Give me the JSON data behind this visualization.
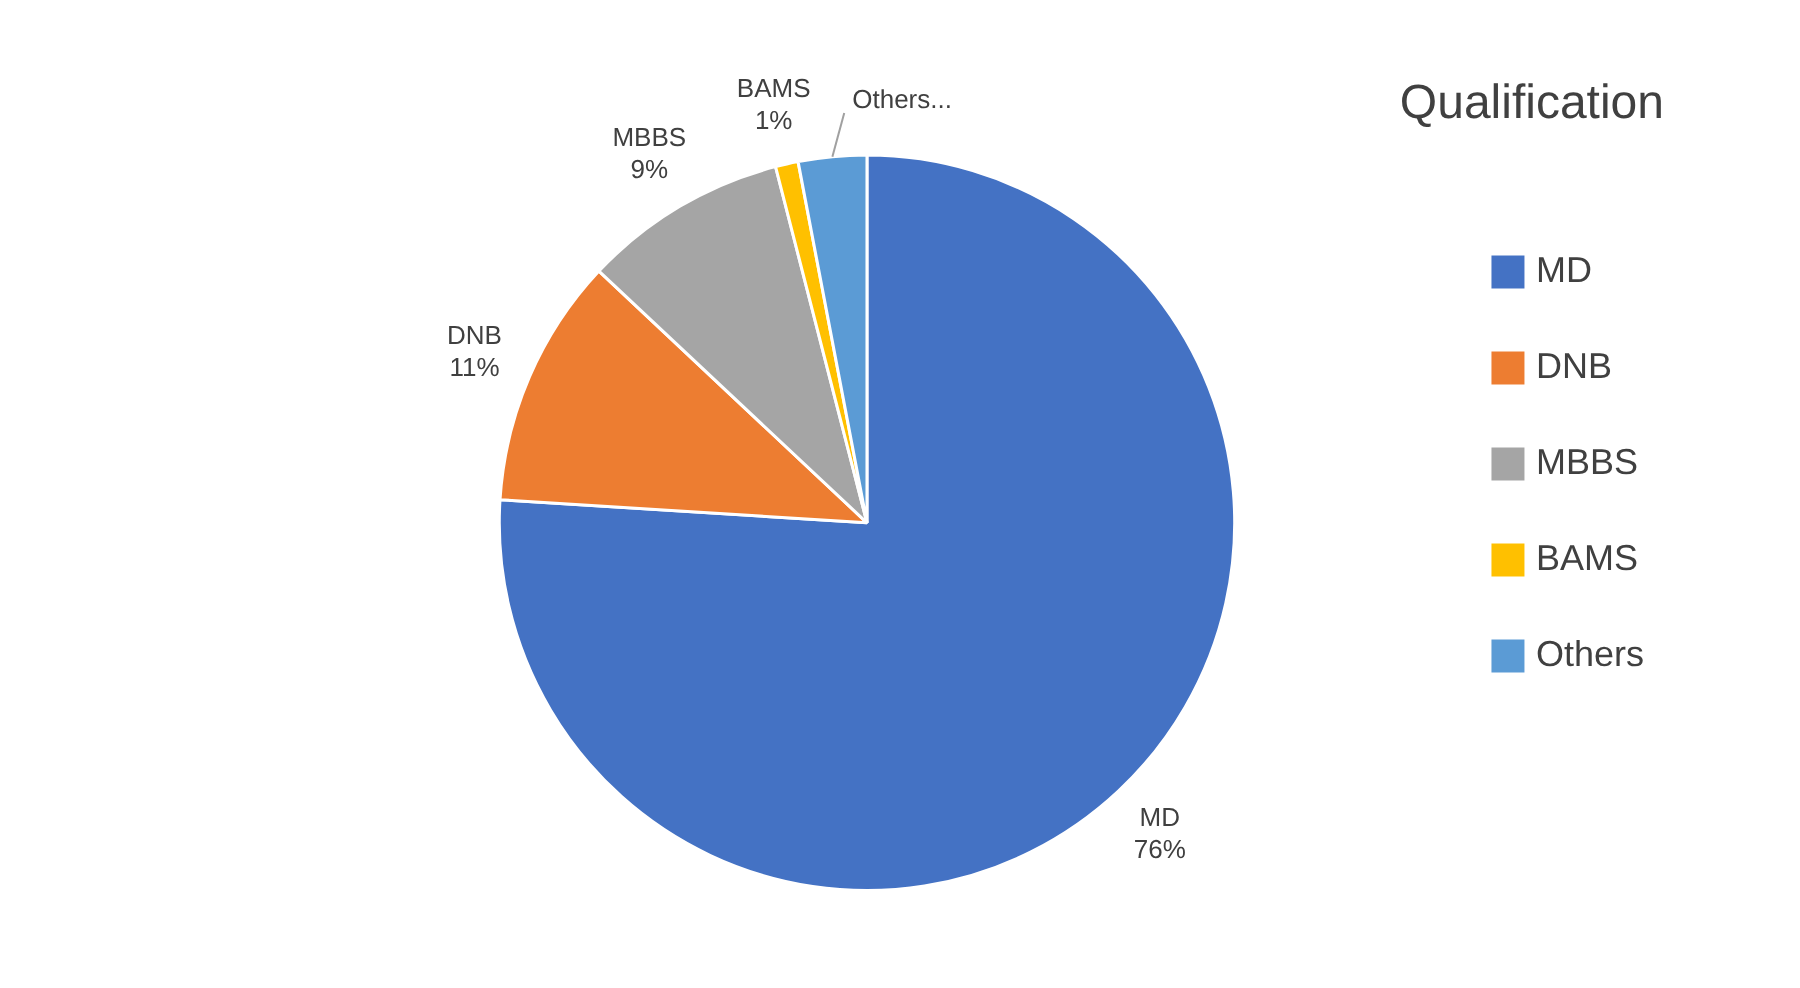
{
  "chart_data": {
    "type": "pie",
    "title": "Qualification",
    "categories": [
      "MD",
      "DNB",
      "MBBS",
      "BAMS",
      "Others"
    ],
    "values": [
      76,
      11,
      9,
      1,
      3
    ],
    "colors": [
      "#4472c4",
      "#ed7d31",
      "#a5a5a5",
      "#ffc000",
      "#5b9bd5"
    ],
    "value_labels": [
      "76%",
      "11%",
      "9%",
      "1%",
      null
    ],
    "annotations": [
      "Others..."
    ],
    "legend": "right"
  }
}
